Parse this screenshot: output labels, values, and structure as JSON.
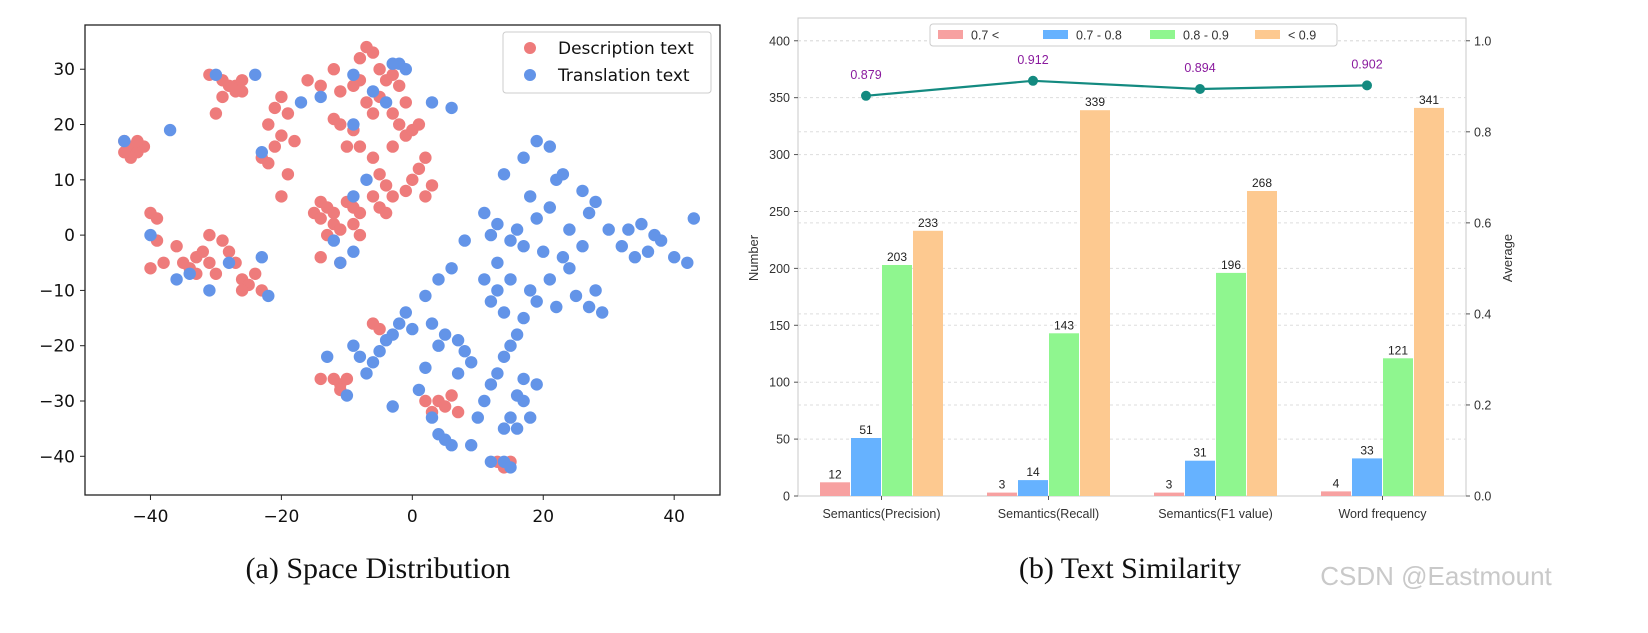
{
  "chart_data": [
    {
      "type": "scatter",
      "panel": "a",
      "caption": "(a) Space Distribution",
      "xlim": [
        -50,
        47
      ],
      "ylim": [
        -47,
        38
      ],
      "xticks": [
        -40,
        -20,
        0,
        20,
        40
      ],
      "yticks": [
        30,
        20,
        10,
        0,
        -10,
        -20,
        -30,
        -40
      ],
      "legend_position": "top-right",
      "series": [
        {
          "name": "Description text",
          "color": "#ee7b7b",
          "points": [
            [
              -43,
              16
            ],
            [
              -44,
              17
            ],
            [
              -42,
              15
            ],
            [
              -43,
              14
            ],
            [
              -44,
              15
            ],
            [
              -41,
              16
            ],
            [
              -42,
              17
            ],
            [
              -27,
              27
            ],
            [
              -26,
              26
            ],
            [
              -28,
              27
            ],
            [
              -27,
              26
            ],
            [
              -26,
              28
            ],
            [
              -29,
              28
            ],
            [
              -31,
              29
            ],
            [
              -29,
              25
            ],
            [
              -30,
              22
            ],
            [
              -21,
              23
            ],
            [
              -20,
              25
            ],
            [
              -19,
              22
            ],
            [
              -22,
              20
            ],
            [
              -20,
              18
            ],
            [
              -18,
              17
            ],
            [
              -21,
              16
            ],
            [
              -23,
              14
            ],
            [
              -22,
              13
            ],
            [
              -19,
              11
            ],
            [
              -20,
              7
            ],
            [
              -16,
              28
            ],
            [
              -14,
              27
            ],
            [
              -12,
              30
            ],
            [
              -11,
              26
            ],
            [
              -9,
              27
            ],
            [
              -8,
              28
            ],
            [
              -7,
              24
            ],
            [
              -6,
              22
            ],
            [
              -5,
              25
            ],
            [
              -4,
              28
            ],
            [
              -6,
              33
            ],
            [
              -7,
              34
            ],
            [
              -8,
              32
            ],
            [
              -5,
              30
            ],
            [
              -3,
              29
            ],
            [
              -2,
              27
            ],
            [
              -1,
              24
            ],
            [
              -3,
              22
            ],
            [
              -2,
              20
            ],
            [
              -1,
              18
            ],
            [
              -3,
              16
            ],
            [
              0,
              19
            ],
            [
              1,
              20
            ],
            [
              2,
              14
            ],
            [
              1,
              12
            ],
            [
              0,
              10
            ],
            [
              -1,
              8
            ],
            [
              2,
              7
            ],
            [
              3,
              9
            ],
            [
              -12,
              21
            ],
            [
              -11,
              20
            ],
            [
              -9,
              19
            ],
            [
              -10,
              16
            ],
            [
              -8,
              16
            ],
            [
              -6,
              14
            ],
            [
              -5,
              11
            ],
            [
              -4,
              9
            ],
            [
              -3,
              7
            ],
            [
              -6,
              7
            ],
            [
              -5,
              5
            ],
            [
              -4,
              4
            ],
            [
              -14,
              6
            ],
            [
              -13,
              5
            ],
            [
              -12,
              4
            ],
            [
              -15,
              4
            ],
            [
              -14,
              3
            ],
            [
              -12,
              2
            ],
            [
              -11,
              1
            ],
            [
              -10,
              6
            ],
            [
              -9,
              5
            ],
            [
              -8,
              4
            ],
            [
              -9,
              2
            ],
            [
              -8,
              0
            ],
            [
              -13,
              0
            ],
            [
              -14,
              -4
            ],
            [
              -11,
              -5
            ],
            [
              -40,
              4
            ],
            [
              -39,
              3
            ],
            [
              -39,
              -1
            ],
            [
              -38,
              -5
            ],
            [
              -40,
              -6
            ],
            [
              -35,
              -5
            ],
            [
              -34,
              -6
            ],
            [
              -33,
              -7
            ],
            [
              -36,
              -2
            ],
            [
              -32,
              -3
            ],
            [
              -31,
              -5
            ],
            [
              -30,
              -7
            ],
            [
              -29,
              -1
            ],
            [
              -28,
              -3
            ],
            [
              -27,
              -5
            ],
            [
              -26,
              -8
            ],
            [
              -25,
              -9
            ],
            [
              -24,
              -7
            ],
            [
              -26,
              -10
            ],
            [
              -23,
              -10
            ],
            [
              -31,
              0
            ],
            [
              -33,
              -4
            ],
            [
              -11,
              -27
            ],
            [
              -10,
              -26
            ],
            [
              -12,
              -26
            ],
            [
              -11,
              -28
            ],
            [
              -14,
              -26
            ],
            [
              -6,
              -16
            ],
            [
              -5,
              -17
            ],
            [
              2,
              -30
            ],
            [
              4,
              -30
            ],
            [
              6,
              -29
            ],
            [
              3,
              -32
            ],
            [
              5,
              -31
            ],
            [
              7,
              -32
            ],
            [
              14,
              -42
            ],
            [
              13,
              -41
            ],
            [
              15,
              -41
            ]
          ]
        },
        {
          "name": "Translation text",
          "color": "#6394e8",
          "points": [
            [
              -44,
              17
            ],
            [
              -37,
              19
            ],
            [
              -40,
              0
            ],
            [
              -30,
              29
            ],
            [
              -24,
              29
            ],
            [
              -17,
              24
            ],
            [
              -14,
              25
            ],
            [
              -9,
              29
            ],
            [
              -2,
              31
            ],
            [
              -3,
              31
            ],
            [
              -6,
              26
            ],
            [
              -9,
              20
            ],
            [
              -4,
              24
            ],
            [
              -1,
              30
            ],
            [
              3,
              24
            ],
            [
              6,
              23
            ],
            [
              -9,
              7
            ],
            [
              -7,
              10
            ],
            [
              -12,
              -1
            ],
            [
              -9,
              -3
            ],
            [
              -11,
              -5
            ],
            [
              -23,
              15
            ],
            [
              -23,
              -4
            ],
            [
              -28,
              -5
            ],
            [
              -31,
              -10
            ],
            [
              -34,
              -7
            ],
            [
              -36,
              -8
            ],
            [
              -22,
              -11
            ],
            [
              8,
              -1
            ],
            [
              12,
              0
            ],
            [
              16,
              1
            ],
            [
              19,
              3
            ],
            [
              21,
              5
            ],
            [
              18,
              7
            ],
            [
              22,
              10
            ],
            [
              17,
              -2
            ],
            [
              20,
              -3
            ],
            [
              23,
              -4
            ],
            [
              26,
              -2
            ],
            [
              24,
              1
            ],
            [
              27,
              4
            ],
            [
              13,
              -5
            ],
            [
              15,
              -8
            ],
            [
              18,
              -10
            ],
            [
              21,
              -8
            ],
            [
              24,
              -6
            ],
            [
              25,
              -11
            ],
            [
              28,
              -10
            ],
            [
              14,
              11
            ],
            [
              17,
              14
            ],
            [
              19,
              17
            ],
            [
              21,
              16
            ],
            [
              23,
              11
            ],
            [
              26,
              8
            ],
            [
              28,
              6
            ],
            [
              30,
              1
            ],
            [
              32,
              -2
            ],
            [
              34,
              -4
            ],
            [
              36,
              -3
            ],
            [
              38,
              -1
            ],
            [
              40,
              -4
            ],
            [
              42,
              -5
            ],
            [
              43,
              3
            ],
            [
              33,
              1
            ],
            [
              35,
              2
            ],
            [
              37,
              0
            ],
            [
              11,
              4
            ],
            [
              13,
              2
            ],
            [
              15,
              -1
            ],
            [
              12,
              -12
            ],
            [
              14,
              -14
            ],
            [
              17,
              -15
            ],
            [
              19,
              -12
            ],
            [
              22,
              -13
            ],
            [
              27,
              -13
            ],
            [
              29,
              -14
            ],
            [
              11,
              -8
            ],
            [
              13,
              -10
            ],
            [
              6,
              -6
            ],
            [
              4,
              -8
            ],
            [
              2,
              -11
            ],
            [
              3,
              -16
            ],
            [
              5,
              -18
            ],
            [
              7,
              -19
            ],
            [
              8,
              -21
            ],
            [
              9,
              -23
            ],
            [
              7,
              -25
            ],
            [
              4,
              -20
            ],
            [
              2,
              -24
            ],
            [
              1,
              -28
            ],
            [
              3,
              -33
            ],
            [
              4,
              -36
            ],
            [
              5,
              -37
            ],
            [
              6,
              -38
            ],
            [
              9,
              -38
            ],
            [
              10,
              -33
            ],
            [
              11,
              -30
            ],
            [
              12,
              -27
            ],
            [
              13,
              -25
            ],
            [
              14,
              -22
            ],
            [
              15,
              -20
            ],
            [
              16,
              -18
            ],
            [
              17,
              -26
            ],
            [
              16,
              -29
            ],
            [
              15,
              -33
            ],
            [
              14,
              -35
            ],
            [
              16,
              -35
            ],
            [
              17,
              -30
            ],
            [
              18,
              -33
            ],
            [
              19,
              -27
            ],
            [
              12,
              -41
            ],
            [
              14,
              -41
            ],
            [
              15,
              -42
            ],
            [
              -2,
              -16
            ],
            [
              -3,
              -18
            ],
            [
              -4,
              -19
            ],
            [
              -5,
              -21
            ],
            [
              -6,
              -23
            ],
            [
              -7,
              -25
            ],
            [
              -8,
              -22
            ],
            [
              -9,
              -20
            ],
            [
              -10,
              -29
            ],
            [
              -13,
              -22
            ],
            [
              -3,
              -31
            ],
            [
              -1,
              -14
            ],
            [
              0,
              -17
            ]
          ]
        }
      ]
    },
    {
      "type": "bar",
      "panel": "b",
      "caption": "(b) Text Similarity",
      "categories": [
        "Semantics(Precision)",
        "Semantics(Recall)",
        "Semantics(F1 value)",
        "Word frequency"
      ],
      "series": [
        {
          "name": "0.7 <",
          "color": "#f7a1a1",
          "values": [
            12,
            3,
            3,
            4
          ]
        },
        {
          "name": "0.7 - 0.8",
          "color": "#66b2ff",
          "values": [
            51,
            14,
            31,
            33
          ]
        },
        {
          "name": "0.8 - 0.9",
          "color": "#8ff68f",
          "values": [
            203,
            143,
            196,
            121
          ]
        },
        {
          "name": "< 0.9",
          "color": "#fdc990",
          "values": [
            233,
            339,
            268,
            341
          ]
        }
      ],
      "ylabel": "Number",
      "ylim": [
        0,
        420
      ],
      "yticks": [
        0,
        50,
        100,
        150,
        200,
        250,
        300,
        350,
        400
      ],
      "y2label": "Average",
      "y2lim": [
        0,
        1.05
      ],
      "y2ticks": [
        "0.0",
        "0.2",
        "0.4",
        "0.6",
        "0.8",
        "1.0"
      ],
      "line_series": {
        "name": "Average",
        "color": "#138a80",
        "values": [
          0.879,
          0.912,
          0.894,
          0.902
        ],
        "labels": [
          "0.879",
          "0.912",
          "0.894",
          "0.902"
        ]
      },
      "legend_position": "top-center",
      "grid": "horizontal-dashed"
    }
  ],
  "watermark": "CSDN @Eastmount"
}
